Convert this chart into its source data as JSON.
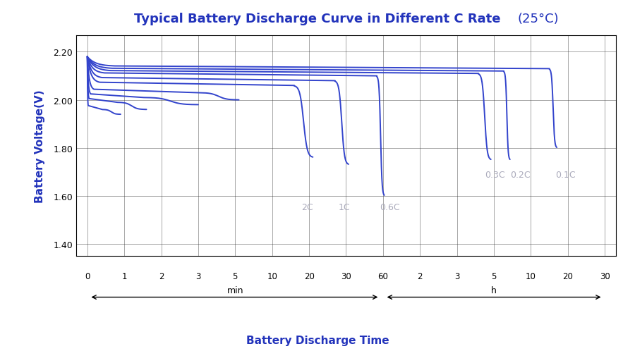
{
  "title_bold": "Typical Battery Discharge Curve in Different C Rate",
  "title_normal": "(25°C)",
  "ylabel": "Battery Voltage(V)",
  "xlabel": "Battery Discharge Time",
  "title_color": "#2233bb",
  "axis_label_color": "#2233bb",
  "line_color": "#3344cc",
  "ylim": [
    1.35,
    2.27
  ],
  "yticks": [
    1.4,
    1.6,
    1.8,
    2.0,
    2.2
  ],
  "tick_labels_min": [
    "0",
    "1",
    "2",
    "3",
    "5",
    "10",
    "20",
    "30",
    "60"
  ],
  "tick_labels_h": [
    "2",
    "3",
    "5",
    "10",
    "20",
    "30"
  ],
  "background": "#ffffff",
  "grid_color": "#333333",
  "label_color": "#aaaabb"
}
